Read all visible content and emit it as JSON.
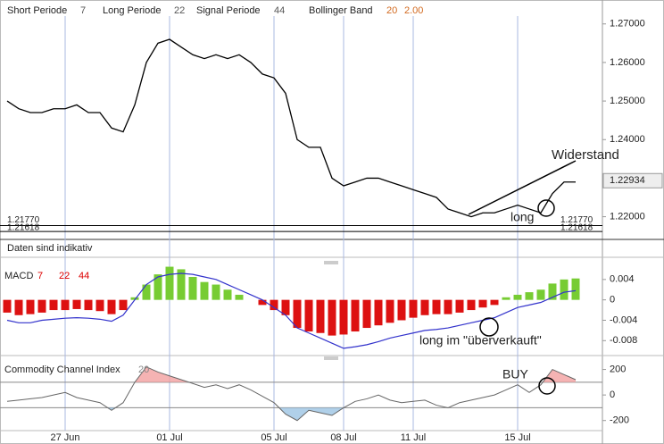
{
  "chart_data": [
    {
      "type": "line",
      "legend": [
        {
          "label": "Short Periode",
          "value": "7",
          "color": "#555555"
        },
        {
          "label": "Long Periode",
          "value": "22",
          "color": "#555555"
        },
        {
          "label": "Signal Periode",
          "value": "44",
          "color": "#555555"
        },
        {
          "label": "Bollinger Band",
          "value": "20",
          "color": "#d2691e"
        },
        {
          "label": "",
          "value": "2.00",
          "color": "#d2691e"
        }
      ],
      "categories": [
        null,
        null,
        null,
        null,
        null,
        "27 Jun",
        null,
        null,
        null,
        null,
        null,
        null,
        null,
        null,
        "01 Jul",
        null,
        null,
        null,
        null,
        null,
        null,
        null,
        null,
        "05 Jul",
        null,
        null,
        null,
        null,
        null,
        "08 Jul",
        null,
        null,
        null,
        null,
        null,
        "11 Jul",
        null,
        null,
        null,
        null,
        null,
        null,
        null,
        null,
        "15 Jul",
        null,
        null,
        null,
        null,
        null
      ],
      "values": [
        1.25,
        1.248,
        1.247,
        1.247,
        1.248,
        1.248,
        1.249,
        1.247,
        1.247,
        1.243,
        1.242,
        1.249,
        1.26,
        1.265,
        1.266,
        1.264,
        1.262,
        1.261,
        1.262,
        1.261,
        1.262,
        1.26,
        1.257,
        1.256,
        1.252,
        1.24,
        1.238,
        1.238,
        1.23,
        1.228,
        1.229,
        1.23,
        1.23,
        1.229,
        1.228,
        1.227,
        1.226,
        1.225,
        1.222,
        1.221,
        1.22,
        1.221,
        1.221,
        1.222,
        1.223,
        1.222,
        1.221,
        1.226,
        1.229,
        1.229
      ],
      "color": "#000000",
      "ylim": [
        1.2155,
        1.2762
      ],
      "yticks": [
        {
          "value": 1.27,
          "label": "1.27000"
        },
        {
          "value": 1.26,
          "label": "1.26000"
        },
        {
          "value": 1.25,
          "label": "1.25000"
        },
        {
          "value": 1.24,
          "label": "1.24000"
        },
        {
          "value": 1.22,
          "label": "1.22000"
        }
      ],
      "ref_lines": [
        {
          "value": 1.2177,
          "label": "1.21770"
        },
        1.21618
      ],
      "last_value": 1.22934,
      "annotations": [
        "Widerstand",
        "long"
      ],
      "note": "Daten sind indikativ"
    },
    {
      "type": "macd",
      "title": "MACD",
      "params": [
        "7",
        "22",
        "44"
      ],
      "values": [
        -0.0025,
        -0.003,
        -0.0028,
        -0.0025,
        -0.002,
        -0.002,
        -0.0018,
        -0.002,
        -0.0022,
        -0.0028,
        -0.002,
        0.0005,
        0.003,
        0.005,
        0.0065,
        0.006,
        0.0045,
        0.0035,
        0.003,
        0.002,
        0.001,
        0,
        -0.001,
        -0.002,
        -0.003,
        -0.0055,
        -0.0062,
        -0.0065,
        -0.007,
        -0.0068,
        -0.0062,
        -0.0055,
        -0.005,
        -0.0045,
        -0.004,
        -0.0035,
        -0.003,
        -0.0028,
        -0.0028,
        -0.0025,
        -0.002,
        -0.0015,
        -0.001,
        0.0005,
        0.001,
        0.0015,
        0.002,
        0.0032,
        0.004,
        0.0042
      ],
      "series": [
        {
          "color": "#3333cc",
          "values": [
            -0.004,
            -0.0045,
            -0.0045,
            -0.004,
            -0.0038,
            -0.0036,
            -0.0035,
            -0.0036,
            -0.0038,
            -0.0042,
            -0.003,
            0,
            0.003,
            0.0045,
            0.005,
            0.0052,
            0.005,
            0.0045,
            0.004,
            0.003,
            0.002,
            0.001,
            0,
            -0.0015,
            -0.003,
            -0.0055,
            -0.0065,
            -0.0075,
            -0.0085,
            -0.0095,
            -0.0092,
            -0.0088,
            -0.0082,
            -0.0075,
            -0.007,
            -0.0065,
            -0.006,
            -0.0058,
            -0.0055,
            -0.005,
            -0.0045,
            -0.004,
            -0.0035,
            -0.0025,
            -0.0015,
            -0.001,
            -0.0005,
            0.0005,
            0.0015,
            0.0018
          ]
        }
      ],
      "ylim": [
        -0.0104,
        0.0066
      ],
      "yticks": [
        0.004,
        0,
        -0.004,
        -0.008
      ],
      "annotation": "long im \"überverkauft\""
    },
    {
      "type": "cci",
      "title": "Commodity Channel Index",
      "params": [
        "20"
      ],
      "values": [
        -50,
        -40,
        -30,
        -20,
        0,
        20,
        -20,
        -40,
        -60,
        -120,
        -60,
        100,
        220,
        180,
        150,
        120,
        90,
        60,
        80,
        50,
        80,
        40,
        -10,
        -60,
        -150,
        -200,
        -120,
        -140,
        -160,
        -100,
        -50,
        -30,
        0,
        -40,
        -60,
        -50,
        -40,
        -80,
        -100,
        -60,
        -40,
        -20,
        0,
        40,
        80,
        20,
        80,
        200,
        160,
        120
      ],
      "color": "#666666",
      "levels": [
        100,
        -100
      ],
      "ylim": [
        -300,
        260
      ],
      "yticks": [
        200,
        0,
        -200
      ],
      "annotation": "BUY"
    }
  ]
}
